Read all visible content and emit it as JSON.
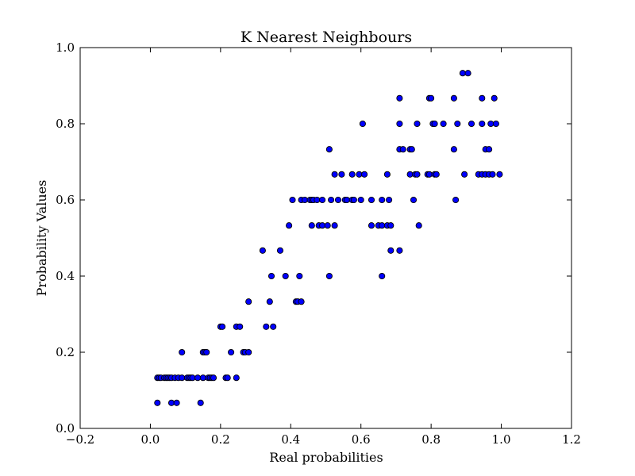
{
  "chart_data": {
    "type": "scatter",
    "title": "K Nearest Neighbours",
    "xlabel": "Real probabilities",
    "ylabel": "Probability Values",
    "xlim": [
      -0.2,
      1.2
    ],
    "ylim": [
      0.0,
      1.0
    ],
    "xticks": [
      "−0.2",
      "0.0",
      "0.2",
      "0.4",
      "0.6",
      "0.8",
      "1.0",
      "1.2"
    ],
    "yticks": [
      "0.0",
      "0.2",
      "0.4",
      "0.6",
      "0.8",
      "1.0"
    ],
    "grid": false,
    "marker_color": "#0000ff",
    "marker_edge_color": "#000000",
    "series": [
      {
        "points": [
          [
            0.02,
            0.067
          ],
          [
            0.06,
            0.067
          ],
          [
            0.075,
            0.067
          ],
          [
            0.143,
            0.067
          ],
          [
            0.02,
            0.133
          ],
          [
            0.025,
            0.133
          ],
          [
            0.03,
            0.133
          ],
          [
            0.04,
            0.133
          ],
          [
            0.045,
            0.133
          ],
          [
            0.05,
            0.133
          ],
          [
            0.055,
            0.133
          ],
          [
            0.06,
            0.133
          ],
          [
            0.07,
            0.133
          ],
          [
            0.08,
            0.133
          ],
          [
            0.09,
            0.133
          ],
          [
            0.105,
            0.133
          ],
          [
            0.11,
            0.133
          ],
          [
            0.115,
            0.133
          ],
          [
            0.12,
            0.133
          ],
          [
            0.135,
            0.133
          ],
          [
            0.15,
            0.133
          ],
          [
            0.165,
            0.133
          ],
          [
            0.17,
            0.133
          ],
          [
            0.175,
            0.133
          ],
          [
            0.18,
            0.133
          ],
          [
            0.215,
            0.133
          ],
          [
            0.22,
            0.133
          ],
          [
            0.245,
            0.133
          ],
          [
            0.09,
            0.2
          ],
          [
            0.15,
            0.2
          ],
          [
            0.155,
            0.2
          ],
          [
            0.16,
            0.2
          ],
          [
            0.23,
            0.2
          ],
          [
            0.265,
            0.2
          ],
          [
            0.27,
            0.2
          ],
          [
            0.28,
            0.2
          ],
          [
            0.2,
            0.267
          ],
          [
            0.205,
            0.267
          ],
          [
            0.245,
            0.267
          ],
          [
            0.255,
            0.267
          ],
          [
            0.33,
            0.267
          ],
          [
            0.35,
            0.267
          ],
          [
            0.28,
            0.333
          ],
          [
            0.34,
            0.333
          ],
          [
            0.415,
            0.333
          ],
          [
            0.42,
            0.333
          ],
          [
            0.43,
            0.333
          ],
          [
            0.345,
            0.4
          ],
          [
            0.385,
            0.4
          ],
          [
            0.425,
            0.4
          ],
          [
            0.51,
            0.4
          ],
          [
            0.66,
            0.4
          ],
          [
            0.32,
            0.467
          ],
          [
            0.37,
            0.467
          ],
          [
            0.685,
            0.467
          ],
          [
            0.71,
            0.467
          ],
          [
            0.395,
            0.533
          ],
          [
            0.46,
            0.533
          ],
          [
            0.48,
            0.533
          ],
          [
            0.49,
            0.533
          ],
          [
            0.505,
            0.533
          ],
          [
            0.525,
            0.533
          ],
          [
            0.63,
            0.533
          ],
          [
            0.65,
            0.533
          ],
          [
            0.66,
            0.533
          ],
          [
            0.675,
            0.533
          ],
          [
            0.685,
            0.533
          ],
          [
            0.765,
            0.533
          ],
          [
            0.405,
            0.6
          ],
          [
            0.43,
            0.6
          ],
          [
            0.44,
            0.6
          ],
          [
            0.455,
            0.6
          ],
          [
            0.46,
            0.6
          ],
          [
            0.465,
            0.6
          ],
          [
            0.475,
            0.6
          ],
          [
            0.49,
            0.6
          ],
          [
            0.515,
            0.6
          ],
          [
            0.535,
            0.6
          ],
          [
            0.555,
            0.6
          ],
          [
            0.56,
            0.6
          ],
          [
            0.575,
            0.6
          ],
          [
            0.58,
            0.6
          ],
          [
            0.6,
            0.6
          ],
          [
            0.63,
            0.6
          ],
          [
            0.66,
            0.6
          ],
          [
            0.68,
            0.6
          ],
          [
            0.75,
            0.6
          ],
          [
            0.87,
            0.6
          ],
          [
            0.525,
            0.667
          ],
          [
            0.545,
            0.667
          ],
          [
            0.575,
            0.667
          ],
          [
            0.595,
            0.667
          ],
          [
            0.61,
            0.667
          ],
          [
            0.675,
            0.667
          ],
          [
            0.74,
            0.667
          ],
          [
            0.755,
            0.667
          ],
          [
            0.76,
            0.667
          ],
          [
            0.79,
            0.667
          ],
          [
            0.795,
            0.667
          ],
          [
            0.81,
            0.667
          ],
          [
            0.815,
            0.667
          ],
          [
            0.895,
            0.667
          ],
          [
            0.935,
            0.667
          ],
          [
            0.945,
            0.667
          ],
          [
            0.955,
            0.667
          ],
          [
            0.965,
            0.667
          ],
          [
            0.975,
            0.667
          ],
          [
            0.995,
            0.667
          ],
          [
            0.51,
            0.733
          ],
          [
            0.71,
            0.733
          ],
          [
            0.72,
            0.733
          ],
          [
            0.74,
            0.733
          ],
          [
            0.745,
            0.733
          ],
          [
            0.865,
            0.733
          ],
          [
            0.955,
            0.733
          ],
          [
            0.965,
            0.733
          ],
          [
            0.605,
            0.8
          ],
          [
            0.71,
            0.8
          ],
          [
            0.76,
            0.8
          ],
          [
            0.805,
            0.8
          ],
          [
            0.81,
            0.8
          ],
          [
            0.835,
            0.8
          ],
          [
            0.875,
            0.8
          ],
          [
            0.915,
            0.8
          ],
          [
            0.945,
            0.8
          ],
          [
            0.97,
            0.8
          ],
          [
            0.985,
            0.8
          ],
          [
            0.71,
            0.867
          ],
          [
            0.795,
            0.867
          ],
          [
            0.8,
            0.867
          ],
          [
            0.865,
            0.867
          ],
          [
            0.945,
            0.867
          ],
          [
            0.98,
            0.867
          ],
          [
            0.89,
            0.933
          ],
          [
            0.905,
            0.933
          ]
        ]
      }
    ]
  }
}
